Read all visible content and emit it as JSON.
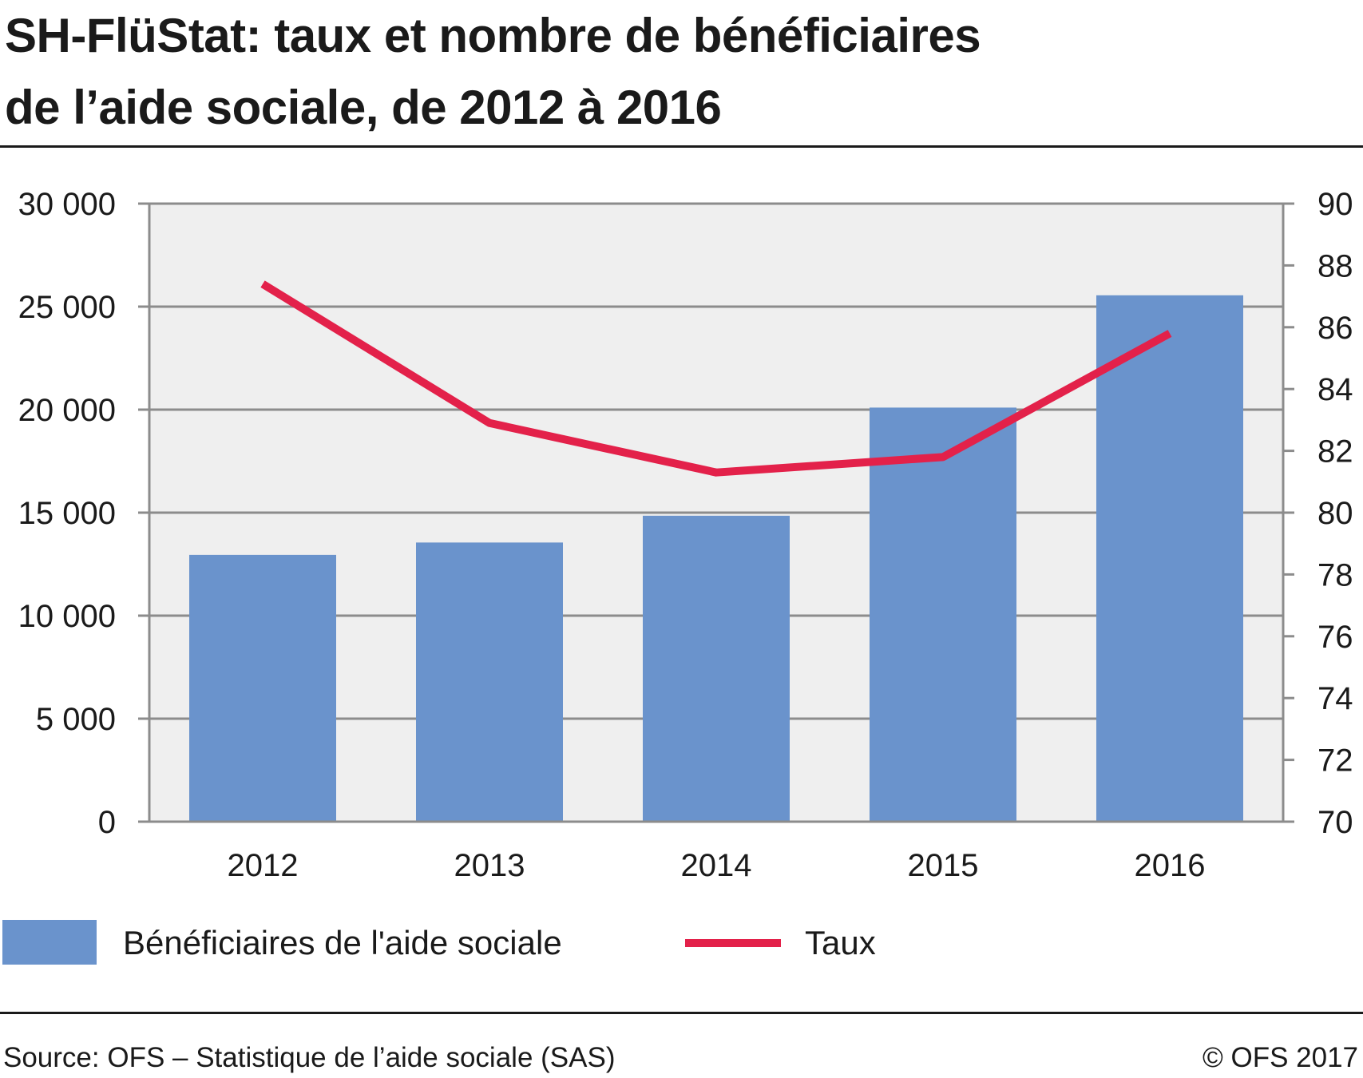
{
  "title": {
    "line1": "SH-FlüStat: taux et nombre de bénéficiaires",
    "line2": "de l’aide sociale, de 2012 à 2016"
  },
  "chart_data": {
    "type": "bar",
    "categories": [
      "2012",
      "2013",
      "2014",
      "2015",
      "2016"
    ],
    "series": [
      {
        "name": "Bénéficiaires de l'aide sociale",
        "type": "bar",
        "axis": "left",
        "color": "#6a93cc",
        "values": [
          12950,
          13550,
          14850,
          20100,
          25550
        ]
      },
      {
        "name": "Taux",
        "type": "line",
        "axis": "right",
        "color": "#e3214a",
        "values": [
          87.4,
          82.9,
          81.3,
          81.8,
          85.8
        ]
      }
    ],
    "y_left": {
      "min": 0,
      "max": 30000,
      "ticks": [
        0,
        5000,
        10000,
        15000,
        20000,
        25000,
        30000
      ],
      "tick_labels": [
        "0",
        "5 000",
        "10 000",
        "15 000",
        "20 000",
        "25 000",
        "30 000"
      ]
    },
    "y_right": {
      "min": 70,
      "max": 90,
      "ticks": [
        70,
        72,
        74,
        76,
        78,
        80,
        82,
        84,
        86,
        88,
        90
      ],
      "tick_labels": [
        "70",
        "72",
        "74",
        "76",
        "78",
        "80",
        "82",
        "84",
        "86",
        "88",
        "90"
      ]
    },
    "grid": true,
    "plot_background": "#efefef",
    "legend_position": "bottom"
  },
  "legend": {
    "bar_label": "Bénéficiaires de l'aide sociale",
    "line_label": "Taux"
  },
  "footer": {
    "source": "Source: OFS – Statistique de l’aide sociale (SAS)",
    "copyright": "© OFS 2017"
  }
}
